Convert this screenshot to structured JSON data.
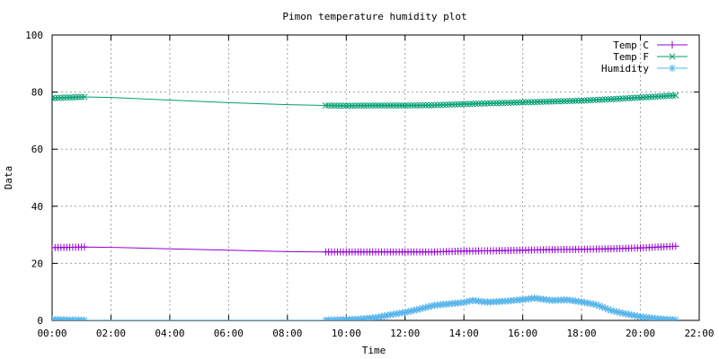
{
  "chart_data": {
    "type": "line",
    "title": "Pimon temperature   humidity plot",
    "xlabel": "Time",
    "ylabel": "Data",
    "xlim": [
      0,
      22
    ],
    "ylim": [
      0,
      100
    ],
    "x_ticks": [
      0,
      2,
      4,
      6,
      8,
      10,
      12,
      14,
      16,
      18,
      20,
      22
    ],
    "x_tick_labels": [
      "00:00",
      "02:00",
      "04:00",
      "06:00",
      "08:00",
      "10:00",
      "12:00",
      "14:00",
      "16:00",
      "18:00",
      "20:00",
      "22:00"
    ],
    "y_ticks": [
      0,
      20,
      40,
      60,
      80,
      100
    ],
    "y_tick_labels": [
      "0",
      "20",
      "40",
      "60",
      "80",
      "100"
    ],
    "grid": true,
    "legend_position": "top-right",
    "x_unit": "hours",
    "series": [
      {
        "name": "Temp C",
        "color": "#9400d3",
        "marker": "plus",
        "points": [
          [
            0,
            25.5
          ],
          [
            0.5,
            25.6
          ],
          [
            1.1,
            25.7
          ],
          [
            2,
            25.6
          ],
          [
            4,
            25.1
          ],
          [
            6,
            24.6
          ],
          [
            8,
            24.1
          ],
          [
            9.3,
            24.0
          ],
          [
            10,
            24.0
          ],
          [
            11,
            24.0
          ],
          [
            12,
            24.0
          ],
          [
            13,
            24.0
          ],
          [
            14,
            24.3
          ],
          [
            15,
            24.4
          ],
          [
            16,
            24.6
          ],
          [
            17,
            24.8
          ],
          [
            18,
            24.9
          ],
          [
            19,
            25.1
          ],
          [
            20,
            25.4
          ],
          [
            21,
            25.9
          ],
          [
            21.2,
            26.0
          ]
        ]
      },
      {
        "name": "Temp F",
        "color": "#009e73",
        "marker": "cross",
        "points": [
          [
            0,
            77.9
          ],
          [
            0.5,
            78.1
          ],
          [
            1.1,
            78.3
          ],
          [
            2,
            78.1
          ],
          [
            4,
            77.2
          ],
          [
            6,
            76.3
          ],
          [
            8,
            75.6
          ],
          [
            9.3,
            75.3
          ],
          [
            10,
            75.2
          ],
          [
            11,
            75.3
          ],
          [
            12,
            75.3
          ],
          [
            13,
            75.4
          ],
          [
            14,
            75.8
          ],
          [
            15,
            76.1
          ],
          [
            16,
            76.4
          ],
          [
            17,
            76.7
          ],
          [
            18,
            77.0
          ],
          [
            19,
            77.5
          ],
          [
            20,
            78.1
          ],
          [
            21,
            78.7
          ],
          [
            21.2,
            78.8
          ]
        ]
      },
      {
        "name": "Humidity",
        "color": "#56b4e9",
        "marker": "star",
        "points": [
          [
            0,
            0.3
          ],
          [
            0.5,
            0.2
          ],
          [
            1.1,
            0.1
          ],
          [
            9.3,
            0.1
          ],
          [
            10,
            0.3
          ],
          [
            10.5,
            0.5
          ],
          [
            11,
            1.0
          ],
          [
            11.5,
            2.0
          ],
          [
            12,
            2.8
          ],
          [
            12.5,
            4.0
          ],
          [
            13,
            5.3
          ],
          [
            13.5,
            5.8
          ],
          [
            14,
            6.3
          ],
          [
            14.3,
            7.0
          ],
          [
            14.8,
            6.4
          ],
          [
            15.5,
            6.8
          ],
          [
            16,
            7.3
          ],
          [
            16.4,
            7.8
          ],
          [
            17,
            7.0
          ],
          [
            17.5,
            7.2
          ],
          [
            18,
            6.5
          ],
          [
            18.5,
            5.5
          ],
          [
            19,
            3.5
          ],
          [
            19.5,
            2.3
          ],
          [
            20,
            1.3
          ],
          [
            20.5,
            0.7
          ],
          [
            21,
            0.3
          ],
          [
            21.2,
            0.2
          ]
        ]
      }
    ]
  }
}
